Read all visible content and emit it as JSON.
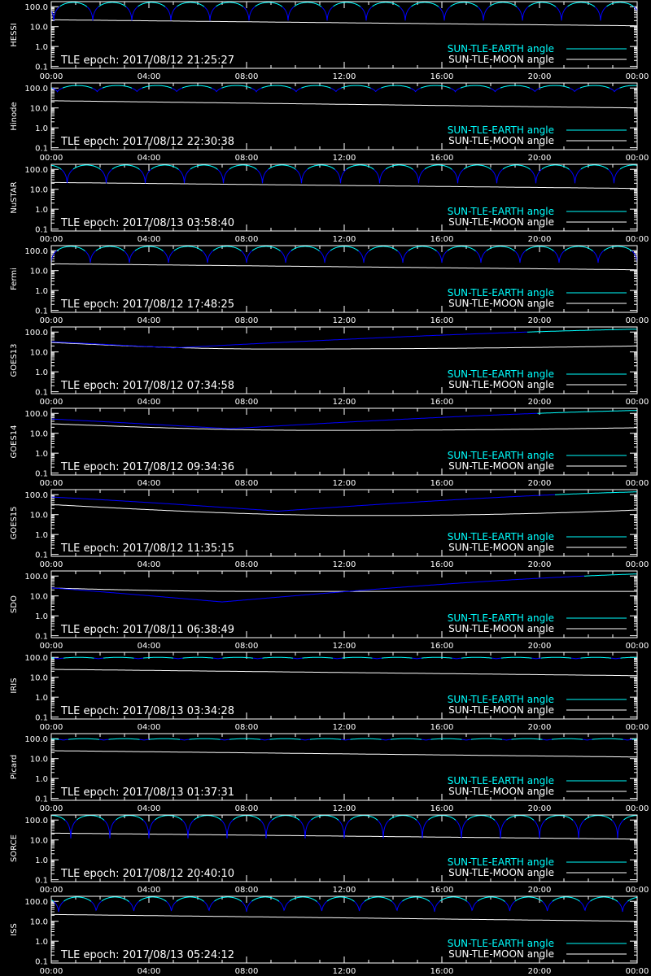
{
  "chart_data": [
    {
      "type": "line",
      "title": "",
      "ylabel": "HESSI",
      "epoch_text": "TLE epoch: 2017/08/12 21:25:27",
      "earth_profile": {
        "kind": "orbit",
        "period_h": 1.6,
        "min": 20,
        "max": 165,
        "phase_h": 0.1,
        "blue_below": 100
      },
      "moon_profile": {
        "start": 22,
        "end": 11
      }
    },
    {
      "type": "line",
      "title": "",
      "ylabel": "Hinode",
      "epoch_text": "TLE epoch: 2017/08/12 22:30:38",
      "earth_profile": {
        "kind": "orbit",
        "period_h": 1.63,
        "min": 65,
        "max": 135,
        "phase_h": 0.25,
        "blue_below": 100
      },
      "moon_profile": {
        "start": 23,
        "end": 10
      }
    },
    {
      "type": "line",
      "title": "",
      "ylabel": "NuSTAR",
      "epoch_text": "TLE epoch: 2017/08/13 03:58:40",
      "earth_profile": {
        "kind": "orbit",
        "period_h": 1.6,
        "min": 20,
        "max": 165,
        "phase_h": 0.65,
        "blue_below": 100
      },
      "moon_profile": {
        "start": 22,
        "end": 11
      }
    },
    {
      "type": "line",
      "title": "",
      "ylabel": "Fermi",
      "epoch_text": "TLE epoch: 2017/08/12 17:48:25",
      "earth_profile": {
        "kind": "orbit",
        "period_h": 1.6,
        "min": 25,
        "max": 165,
        "phase_h": 0.0,
        "blue_below": 100
      },
      "moon_profile": {
        "start": 22,
        "end": 11
      }
    },
    {
      "type": "line",
      "title": "",
      "ylabel": "GOES13",
      "epoch_text": "TLE epoch: 2017/08/12 07:34:58",
      "earth_profile": {
        "kind": "geo",
        "min_time": 5.0,
        "min": 16,
        "max": 170,
        "blue_below": 100
      },
      "moon_profile": {
        "kind": "dip",
        "start": 30,
        "dip_time": 9.0,
        "dip": 14,
        "end": 20
      }
    },
    {
      "type": "line",
      "title": "",
      "ylabel": "GOES14",
      "epoch_text": "TLE epoch: 2017/08/12 09:34:36",
      "earth_profile": {
        "kind": "geo",
        "min_time": 7.3,
        "min": 17,
        "max": 170,
        "blue_below": 100
      },
      "moon_profile": {
        "kind": "dip",
        "start": 30,
        "dip_time": 11.0,
        "dip": 14,
        "end": 19
      }
    },
    {
      "type": "line",
      "title": "",
      "ylabel": "GOES15",
      "epoch_text": "TLE epoch: 2017/08/12 11:35:15",
      "earth_profile": {
        "kind": "geo",
        "min_time": 9.3,
        "min": 15,
        "max": 170,
        "blue_below": 100
      },
      "moon_profile": {
        "kind": "dip",
        "start": 32,
        "dip_time": 13.0,
        "dip": 9,
        "end": 17
      }
    },
    {
      "type": "line",
      "title": "",
      "ylabel": "SDO",
      "epoch_text": "TLE epoch: 2017/08/11 06:38:49",
      "earth_profile": {
        "kind": "geo",
        "min_time": 7.0,
        "min": 5,
        "max": 170,
        "blue_below": 100
      },
      "moon_profile": {
        "kind": "dip",
        "start": 25,
        "dip_time": 8.0,
        "dip": 17,
        "end": 17
      }
    },
    {
      "type": "line",
      "title": "",
      "ylabel": "IRIS",
      "epoch_text": "TLE epoch: 2017/08/13 03:34:28",
      "earth_profile": {
        "kind": "orbit",
        "period_h": 1.63,
        "min": 85,
        "max": 100,
        "phase_h": 0.3,
        "blue_below": 92
      },
      "moon_profile": {
        "start": 25,
        "end": 12
      }
    },
    {
      "type": "line",
      "title": "",
      "ylabel": "Picard",
      "epoch_text": "TLE epoch: 2017/08/13 01:37:31",
      "earth_profile": {
        "kind": "orbit",
        "period_h": 1.65,
        "min": 85,
        "max": 100,
        "phase_h": 0.5,
        "blue_below": 92
      },
      "moon_profile": {
        "start": 25,
        "end": 12
      }
    },
    {
      "type": "line",
      "title": "",
      "ylabel": "SORCE",
      "epoch_text": "TLE epoch: 2017/08/12 20:40:10",
      "earth_profile": {
        "kind": "orbit",
        "period_h": 1.6,
        "min": 12,
        "max": 170,
        "phase_h": 0.8,
        "blue_below": 100
      },
      "moon_profile": {
        "start": 22,
        "end": 11
      }
    },
    {
      "type": "line",
      "title": "",
      "ylabel": "ISS",
      "epoch_text": "TLE epoch: 2017/08/13 05:24:12",
      "earth_profile": {
        "kind": "orbit",
        "period_h": 1.54,
        "min": 30,
        "max": 165,
        "phase_h": 0.3,
        "blue_below": 100
      },
      "moon_profile": {
        "start": 22,
        "end": 10
      }
    }
  ],
  "shared": {
    "x_tick_labels": [
      "00:00",
      "04:00",
      "08:00",
      "12:00",
      "16:00",
      "20:00",
      "00:00"
    ],
    "y_tick_labels": [
      "100.0",
      "10.0",
      "1.0",
      "0.1"
    ],
    "y_tick_values": [
      100,
      10,
      1,
      0.1
    ],
    "ylim": [
      0.08,
      180
    ],
    "xlim_hours": [
      0,
      24
    ],
    "y_scale": "log",
    "legend_earth": "SUN-TLE-EARTH angle",
    "legend_moon": "SUN-TLE-MOON angle"
  },
  "colors": {
    "background": "#000000",
    "axes": "#ffffff",
    "earth_above": "#00ffff",
    "earth_below": "#0000ff",
    "moon": "#ffffff",
    "legend_earth_text": "#00ffff",
    "legend_moon_text": "#ffffff"
  }
}
